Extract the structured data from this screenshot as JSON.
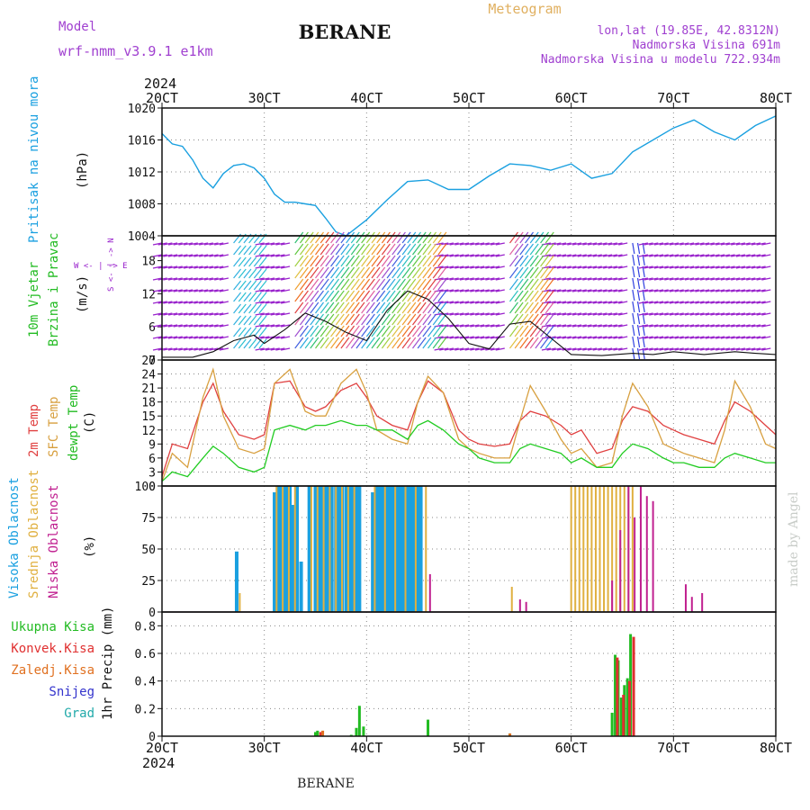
{
  "header": {
    "model_label": "Model",
    "model_name": "wrf-nmm_v3.9.1  e1km",
    "station": "BERANE",
    "app_title": "Meteogram",
    "coords": "lon,lat (19.85E, 42.8312N)",
    "elev": "Nadmorska Visina 691m",
    "elev_model": "Nadmorska Visina u modelu 722.934m",
    "year": "2024",
    "footer_station": "BERANE",
    "credit": "made by Angel"
  },
  "x_ticks": [
    "20CT",
    "30CT",
    "40CT",
    "50CT",
    "60CT",
    "70CT",
    "80CT"
  ],
  "colors": {
    "pressure": "#1aa0e0",
    "wind_label": "#22bb22",
    "wind_purple": "#9922cc",
    "temp2m": "#e04040",
    "sfc": "#d8a040",
    "dew": "#22cc22",
    "high_cloud": "#1aa0e0",
    "mid_cloud": "#e0b040",
    "low_cloud": "#c02090",
    "precip_total": "#22bb22",
    "precip_conv": "#e03030",
    "precip_frz": "#e07020",
    "snow": "#3333cc",
    "graupel": "#22aaaa"
  },
  "panels": {
    "pressure": {
      "label": "Pritisak na nivou mora",
      "unit": "(hPa)"
    },
    "wind": {
      "label1": "10m Vjetar",
      "label2": "Brzina i Pravac",
      "unit": "(m/s)",
      "compass": "W <- | -> E",
      "compass2": "S <- | -> N"
    },
    "temp": {
      "label1": "2m Temp",
      "label2": "SFC Temp",
      "label3": "dewpt Temp",
      "unit": "(C)"
    },
    "cloud": {
      "label1": "Visoka Oblacnost",
      "label2": "Srednja Oblacnost",
      "label3": "Niska Oblacnost",
      "unit": "(%)"
    },
    "precip": {
      "l1": "Ukupna Kisa",
      "l2": "Konvek.Kisa",
      "l3": "Zaledj.Kisa",
      "l4": "Snijeg",
      "l5": "Grad",
      "unit": "1hr Precip (mm)"
    }
  },
  "chart_data": [
    {
      "type": "line",
      "name": "pressure",
      "ylim": [
        1004,
        1020
      ],
      "yticks": [
        1004,
        1008,
        1012,
        1016,
        1020
      ],
      "x": [
        0,
        0.1,
        0.2,
        0.3,
        0.4,
        0.5,
        0.6,
        0.7,
        0.8,
        0.9,
        1.0,
        1.1,
        1.2,
        1.3,
        1.4,
        1.5,
        1.6,
        1.7,
        1.8,
        1.9,
        2.0,
        2.2,
        2.4,
        2.6,
        2.8,
        3.0,
        3.2,
        3.4,
        3.6,
        3.8,
        4.0,
        4.2,
        4.4,
        4.6,
        4.8,
        5.0,
        5.2,
        5.4,
        5.6,
        5.8,
        6.0
      ],
      "series": [
        {
          "values": [
            1016.8,
            1015.5,
            1015.2,
            1013.5,
            1011.2,
            1010.0,
            1011.8,
            1012.8,
            1013.0,
            1012.5,
            1011.2,
            1009.2,
            1008.2,
            1008.2,
            1008.0,
            1007.8,
            1006.2,
            1004.5,
            1004.0,
            1005.0,
            1006.0,
            1008.5,
            1010.8,
            1011.0,
            1009.8,
            1009.8,
            1011.5,
            1013.0,
            1012.8,
            1012.2,
            1013.0,
            1011.2,
            1011.8,
            1014.5,
            1016.0,
            1017.5,
            1018.5,
            1017.0,
            1016.0,
            1017.8,
            1019.0
          ]
        }
      ]
    },
    {
      "type": "line",
      "name": "wind speed",
      "ylim": [
        0,
        22.5
      ],
      "yticks": [
        0,
        6,
        12,
        18
      ],
      "x": [
        0,
        0.3,
        0.5,
        0.7,
        0.9,
        1.0,
        1.2,
        1.4,
        1.6,
        1.8,
        2.0,
        2.2,
        2.4,
        2.6,
        2.8,
        3.0,
        3.2,
        3.4,
        3.6,
        3.8,
        4.0,
        4.3,
        4.6,
        4.8,
        5.0,
        5.3,
        5.6,
        5.8,
        6.0
      ],
      "series": [
        {
          "values": [
            0.5,
            0.5,
            1.5,
            3.5,
            4.5,
            3.0,
            5.5,
            8.5,
            7.0,
            5.0,
            3.5,
            9.0,
            12.5,
            11.0,
            7.5,
            3.0,
            2.0,
            6.5,
            7.0,
            4.0,
            1.0,
            0.8,
            1.2,
            1.0,
            1.5,
            1.0,
            1.5,
            1.2,
            1.0
          ]
        }
      ]
    },
    {
      "type": "line",
      "ylim": [
        0,
        27
      ],
      "yticks": [
        0,
        3,
        6,
        9,
        12,
        15,
        18,
        21,
        24,
        27
      ],
      "x": [
        0,
        0.1,
        0.25,
        0.4,
        0.5,
        0.6,
        0.75,
        0.9,
        1.0,
        1.1,
        1.25,
        1.4,
        1.5,
        1.6,
        1.75,
        1.9,
        2.0,
        2.1,
        2.25,
        2.4,
        2.5,
        2.6,
        2.75,
        2.9,
        3.0,
        3.1,
        3.25,
        3.4,
        3.5,
        3.6,
        3.75,
        3.9,
        4.0,
        4.1,
        4.25,
        4.4,
        4.5,
        4.6,
        4.75,
        4.9,
        5.0,
        5.1,
        5.25,
        5.4,
        5.5,
        5.6,
        5.75,
        5.9,
        6.0
      ],
      "series": [
        {
          "name": "2m Temp",
          "values": [
            2,
            9,
            8,
            18,
            22,
            16,
            11,
            10,
            11,
            22,
            22.5,
            17,
            16,
            17,
            20.5,
            22,
            19,
            15,
            13,
            12,
            18,
            22.5,
            20,
            12,
            10,
            9,
            8.5,
            9,
            14,
            16,
            15,
            13,
            11,
            12,
            7,
            8,
            14,
            17,
            16,
            13,
            12,
            11,
            10,
            9,
            14,
            18,
            16,
            13,
            11
          ]
        },
        {
          "name": "SFC Temp",
          "values": [
            1,
            7,
            4,
            19,
            25,
            15,
            8,
            7,
            8,
            22,
            25,
            16,
            15,
            15,
            22,
            25,
            20,
            12,
            10,
            9,
            18,
            23.5,
            20,
            10,
            8,
            7,
            6,
            6,
            14,
            21.5,
            16,
            10,
            7,
            8,
            4,
            5,
            15,
            22,
            17,
            9,
            8,
            7,
            6,
            5,
            12,
            22.5,
            17,
            9,
            8
          ]
        },
        {
          "name": "dewpt Temp",
          "values": [
            1,
            3,
            2,
            6,
            8.5,
            7,
            4,
            3,
            4,
            12,
            13,
            12,
            13,
            13,
            14,
            13,
            13,
            12,
            12,
            10,
            13,
            14,
            12,
            9,
            8,
            6,
            5,
            5,
            8,
            9,
            8,
            7,
            5,
            6,
            4,
            4,
            7,
            9,
            8,
            6,
            5,
            5,
            4,
            4,
            6,
            7,
            6,
            5,
            5
          ]
        }
      ]
    },
    {
      "type": "bar",
      "name": "cloudiness",
      "ylim": [
        0,
        100
      ],
      "yticks": [
        0,
        25,
        50,
        75,
        100
      ],
      "series": [
        {
          "name": "Visoka Oblacnost",
          "x": [
            0.73,
            1.1,
            1.13,
            1.15,
            1.18,
            1.2,
            1.23,
            1.25,
            1.28,
            1.32,
            1.36,
            1.44,
            1.5,
            1.53,
            1.56,
            1.6,
            1.63,
            1.66,
            1.7,
            1.73,
            1.76,
            1.8,
            1.83,
            1.86,
            1.9,
            1.93,
            2.06,
            2.1,
            2.13,
            2.16,
            2.2,
            2.23,
            2.26,
            2.3,
            2.33,
            2.36,
            2.4,
            2.43,
            2.46,
            2.5,
            2.53
          ],
          "values": [
            48,
            95,
            100,
            100,
            100,
            100,
            100,
            100,
            85,
            100,
            40,
            100,
            100,
            100,
            100,
            100,
            100,
            100,
            100,
            100,
            100,
            100,
            100,
            100,
            100,
            100,
            95,
            100,
            100,
            100,
            100,
            100,
            100,
            100,
            100,
            100,
            100,
            100,
            100,
            100,
            100
          ]
        },
        {
          "name": "Srednja Oblacnost",
          "x": [
            0.76,
            1.12,
            1.18,
            1.24,
            1.3,
            1.46,
            1.52,
            1.58,
            1.64,
            1.7,
            1.76,
            1.82,
            1.88,
            2.08,
            2.18,
            2.28,
            2.38,
            2.48,
            2.58,
            3.42,
            4.0,
            4.04,
            4.08,
            4.12,
            4.16,
            4.2,
            4.24,
            4.28,
            4.32,
            4.36,
            4.4,
            4.44,
            4.48,
            4.52,
            4.56,
            4.6
          ],
          "values": [
            15,
            100,
            100,
            100,
            100,
            100,
            100,
            100,
            100,
            100,
            100,
            100,
            100,
            100,
            100,
            100,
            100,
            100,
            100,
            20,
            100,
            100,
            100,
            100,
            100,
            100,
            100,
            100,
            100,
            100,
            100,
            100,
            100,
            100,
            100,
            100
          ]
        },
        {
          "name": "Niska Oblacnost",
          "x": [
            2.62,
            3.5,
            3.56,
            4.4,
            4.48,
            4.56,
            4.62,
            4.68,
            4.74,
            4.8,
            5.12,
            5.18,
            5.28
          ],
          "values": [
            30,
            10,
            8,
            25,
            65,
            100,
            75,
            100,
            92,
            88,
            22,
            12,
            15
          ]
        }
      ]
    },
    {
      "type": "bar",
      "name": "precipitation",
      "ylim": [
        0,
        0.9
      ],
      "yticks": [
        0,
        0.2,
        0.4,
        0.6,
        0.8
      ],
      "series": [
        {
          "name": "Ukupna Kisa",
          "x": [
            1.5,
            1.52,
            1.85,
            1.9,
            1.93,
            1.97,
            2.6,
            3.4,
            4.4,
            4.43,
            4.46,
            4.49,
            4.52,
            4.55,
            4.58
          ],
          "values": [
            0.03,
            0.04,
            0.01,
            0.06,
            0.22,
            0.07,
            0.12,
            0.02,
            0.17,
            0.59,
            0.55,
            0.28,
            0.37,
            0.42,
            0.74
          ]
        },
        {
          "name": "Konvek.Kisa",
          "x": [
            1.54,
            4.44,
            4.5,
            4.56,
            4.6
          ],
          "values": [
            0.03,
            0.57,
            0.3,
            0.4,
            0.72
          ]
        },
        {
          "name": "Zaledj.Kisa",
          "x": [
            1.55,
            3.38
          ],
          "values": [
            0.04,
            0.02
          ]
        }
      ]
    }
  ]
}
